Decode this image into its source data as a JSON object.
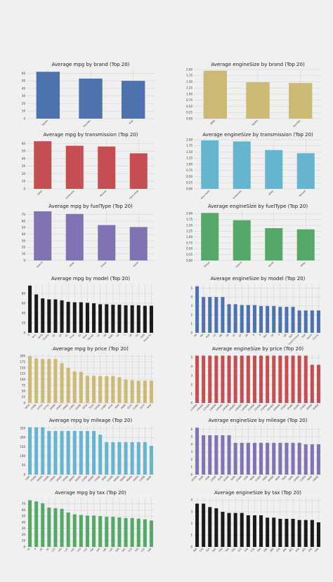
{
  "figure": {
    "background": "#f0f0f0"
  },
  "chart_data": [
    {
      "type": "bar",
      "title": "Average mpg by brand (Top 20)",
      "categories": [
        "Toyota",
        "Hyundai",
        "Audi"
      ],
      "values": [
        62,
        53,
        50
      ],
      "ylim": [
        0,
        65
      ],
      "yticks": [
        0,
        10,
        20,
        30,
        40,
        50,
        60
      ],
      "color": "#4c72b0",
      "grid": true
    },
    {
      "type": "bar",
      "title": "Average engineSize by brand (Top 20)",
      "categories": [
        "BMW",
        "Toyota",
        "Hyundai"
      ],
      "values": [
        1.95,
        1.48,
        1.45
      ],
      "ylim": [
        0,
        2.0
      ],
      "yticks": [
        "0.00",
        "0.25",
        "0.50",
        "0.75",
        "1.00",
        "1.25",
        "1.50",
        "1.75",
        "2.00"
      ],
      "color": "#ccb974",
      "grid": true
    },
    {
      "type": "bar",
      "title": "Average mpg by transmission (Top 20)",
      "categories": [
        "Other",
        "Automatic",
        "Manual",
        "Semi-Auto"
      ],
      "values": [
        63,
        57,
        56,
        47
      ],
      "ylim": [
        0,
        65
      ],
      "yticks": [
        0,
        10,
        20,
        30,
        40,
        50,
        60
      ],
      "color": "#c44e52",
      "grid": true
    },
    {
      "type": "bar",
      "title": "Average engineSize by transmission (Top 20)",
      "categories": [
        "Semi-Auto",
        "Automatic",
        "Other",
        "Manual"
      ],
      "values": [
        1.97,
        1.93,
        1.58,
        1.45
      ],
      "ylim": [
        0,
        2.0
      ],
      "yticks": [
        "0.00",
        "0.25",
        "0.50",
        "0.75",
        "1.00",
        "1.25",
        "1.50",
        "1.75",
        "2.00"
      ],
      "color": "#64b5cd",
      "grid": true
    },
    {
      "type": "bar",
      "title": "Average mpg by fuelType (Top 20)",
      "categories": [
        "Hybrid",
        "Other",
        "Diesel",
        "Petrol"
      ],
      "values": [
        75,
        71,
        54,
        51
      ],
      "ylim": [
        0,
        75
      ],
      "yticks": [
        0,
        10,
        20,
        30,
        40,
        50,
        60,
        70
      ],
      "color": "#8172b2",
      "grid": true
    },
    {
      "type": "bar",
      "title": "Average engineSize by fuelType (Top 20)",
      "categories": [
        "Diesel",
        "Hybrid",
        "Petrol",
        "Other"
      ],
      "values": [
        2.03,
        1.72,
        1.38,
        1.33
      ],
      "ylim": [
        0,
        2.1
      ],
      "yticks": [
        "0.00",
        "0.25",
        "0.50",
        "0.75",
        "1.00",
        "1.25",
        "1.50",
        "1.75",
        "2.00"
      ],
      "color": "#55a868",
      "grid": true
    },
    {
      "type": "bar",
      "title": "Average mpg by model (Top 20)",
      "categories": [
        "i3",
        "Yaris",
        "Ioniq",
        "Corolla",
        "Q2",
        "Q3",
        "A1",
        "Prius",
        "A3",
        "Kona",
        "Tucson",
        "X1",
        "i30",
        "Aygo",
        "A4",
        "1",
        "i20",
        "i10",
        "IX20",
        "Santa Fe"
      ],
      "values": [
        96,
        78,
        70,
        68,
        68,
        66,
        63,
        62,
        62,
        61,
        60,
        58,
        58,
        57,
        57,
        56,
        56,
        56,
        55,
        55
      ],
      "ylim": [
        0,
        100
      ],
      "yticks": [
        0,
        20,
        40,
        60,
        80
      ],
      "color": "#1a1a1a",
      "grid": true
    },
    {
      "type": "bar",
      "title": "Average engineSize by model (Top 20)",
      "categories": [
        "R8",
        "M4",
        "RS6",
        "X7",
        "M5",
        "X6",
        "X5",
        "Q7",
        "A8",
        "6",
        "8",
        "RS5",
        "S4",
        "7",
        "Q8",
        "SQ5",
        "Land Cruiser",
        "RS4",
        "Supra",
        "Camry"
      ],
      "values": [
        5.2,
        4.0,
        4.0,
        4.0,
        4.0,
        3.2,
        3.2,
        3.1,
        3.1,
        3.1,
        3.0,
        3.0,
        3.0,
        2.9,
        2.9,
        2.9,
        2.5,
        2.5,
        2.5,
        2.5
      ],
      "ylim": [
        0,
        5.5
      ],
      "yticks": [
        0,
        1,
        2,
        3,
        4,
        5
      ],
      "color": "#4c72b0",
      "grid": true
    },
    {
      "type": "bar",
      "title": "Average mpg by price (Top 20)",
      "categories": [
        "9950",
        "13990",
        "14750",
        "15750",
        "18990",
        "10450",
        "10680",
        "11895",
        "18500",
        "8450",
        "7250",
        "10590",
        "13880",
        "6750",
        "7850",
        "9000",
        "8225",
        "15495",
        "6575",
        "7899"
      ],
      "values": [
        200,
        190,
        188,
        188,
        188,
        170,
        150,
        135,
        133,
        116,
        116,
        115,
        115,
        115,
        110,
        100,
        97,
        95,
        95,
        95
      ],
      "ylim": [
        0,
        210
      ],
      "yticks": [
        0,
        25,
        50,
        75,
        100,
        125,
        150,
        175,
        200
      ],
      "color": "#ccb974",
      "grid": true
    },
    {
      "type": "bar",
      "title": "Average engineSize by price (Top 20)",
      "categories": [
        "119000",
        "135000",
        "137000",
        "140000",
        "142000",
        "145000",
        "146000",
        "148000",
        "149000",
        "155000",
        "159000",
        "159999",
        "165000",
        "200000",
        "23000",
        "24000",
        "25000",
        "27000",
        "28000",
        "30000"
      ],
      "values": [
        5.2,
        5.2,
        5.2,
        5.2,
        5.2,
        5.2,
        5.2,
        5.2,
        5.2,
        5.2,
        5.2,
        5.2,
        5.2,
        5.2,
        5.2,
        5.2,
        5.2,
        5.2,
        4.2,
        4.2
      ],
      "ylim": [
        0,
        5.4
      ],
      "yticks": [
        0,
        1,
        2,
        3,
        4,
        5
      ],
      "color": "#c44e52",
      "grid": true
    },
    {
      "type": "bar",
      "title": "Average mpg by mileage (Top 20)",
      "categories": [
        "1286",
        "23000",
        "34000",
        "15000",
        "10000",
        "18000",
        "32000",
        "28000",
        "40000",
        "21000",
        "45000",
        "13000",
        "9000",
        "52000",
        "60000",
        "38000",
        "49000",
        "16000",
        "11000",
        "8000"
      ],
      "values": [
        255,
        255,
        255,
        235,
        235,
        235,
        235,
        235,
        235,
        235,
        235,
        215,
        175,
        175,
        175,
        175,
        175,
        175,
        175,
        155
      ],
      "ylim": [
        0,
        265
      ],
      "yticks": [
        0,
        50,
        100,
        150,
        200,
        250
      ],
      "color": "#64b5cd",
      "grid": true
    },
    {
      "type": "bar",
      "title": "Average engineSize by mileage (Top 20)",
      "categories": [
        "18700",
        "5000",
        "2500",
        "12000",
        "8100",
        "15000",
        "3000",
        "21000",
        "1500",
        "4000",
        "31000",
        "2000",
        "45000",
        "6000",
        "7000",
        "1000",
        "22000",
        "11000",
        "9000",
        "10000"
      ],
      "values": [
        6.2,
        5.2,
        5.2,
        5.2,
        5.2,
        5.2,
        4.2,
        4.2,
        4.2,
        4.2,
        4.2,
        4.2,
        4.2,
        4.2,
        4.2,
        4.2,
        4.2,
        4.0,
        4.0,
        4.0
      ],
      "ylim": [
        0,
        6.5
      ],
      "yticks": [
        0,
        1,
        2,
        3,
        4,
        5,
        6
      ],
      "color": "#8172b2",
      "grid": true
    },
    {
      "type": "bar",
      "title": "Average mpg by tax (Top 20)",
      "categories": [
        "10",
        "0",
        "20",
        "30",
        "125",
        "140",
        "135",
        "145",
        "150",
        "155",
        "160",
        "165",
        "190",
        "195",
        "200",
        "205",
        "210",
        "230",
        "235",
        "240"
      ],
      "values": [
        76,
        74,
        71,
        64,
        63,
        62,
        56,
        53,
        52,
        51,
        51,
        50,
        49,
        49,
        48,
        47,
        47,
        46,
        45,
        43
      ],
      "ylim": [
        0,
        80
      ],
      "yticks": [
        0,
        10,
        20,
        30,
        40,
        50,
        60,
        70
      ],
      "color": "#55a868",
      "grid": true
    },
    {
      "type": "bar",
      "title": "Average engineSize by tax (Top 20)",
      "categories": [
        "580",
        "570",
        "555",
        "565",
        "540",
        "550",
        "520",
        "515",
        "530",
        "510",
        "500",
        "490",
        "480",
        "470",
        "460",
        "455",
        "450",
        "445",
        "440",
        "430"
      ],
      "values": [
        3.7,
        3.7,
        3.4,
        3.3,
        3.0,
        2.9,
        2.9,
        2.9,
        2.7,
        2.7,
        2.7,
        2.5,
        2.5,
        2.4,
        2.4,
        2.4,
        2.3,
        2.3,
        2.3,
        2.1
      ],
      "ylim": [
        0,
        4.2
      ],
      "yticks": [
        0,
        1,
        2,
        3,
        4
      ],
      "color": "#1a1a1a",
      "grid": true
    }
  ]
}
